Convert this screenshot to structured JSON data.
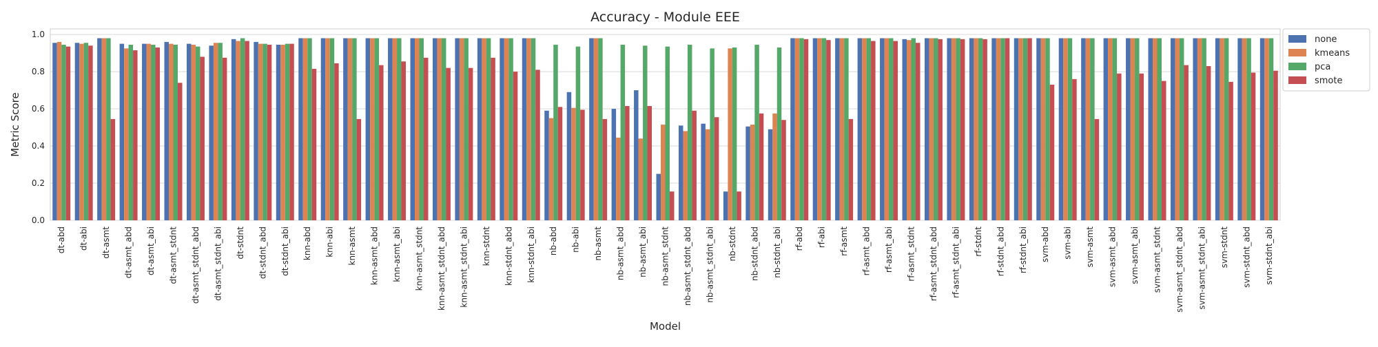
{
  "chart_data": {
    "type": "bar",
    "title": "Accuracy - Module EEE",
    "xlabel": "Model",
    "ylabel": "Metric Score",
    "ylim": [
      0,
      1.03
    ],
    "yticks": [
      "0.0",
      "0.2",
      "0.4",
      "0.6",
      "0.8",
      "1.0"
    ],
    "grid": true,
    "legend_position": "outside-top-right",
    "categories": [
      "dt-abd",
      "dt-abi",
      "dt-asmt",
      "dt-asmt_abd",
      "dt-asmt_abi",
      "dt-asmt_stdnt",
      "dt-asmt_stdnt_abd",
      "dt-asmt_stdnt_abi",
      "dt-stdnt",
      "dt-stdnt_abd",
      "dt-stdnt_abi",
      "knn-abd",
      "knn-abi",
      "knn-asmt",
      "knn-asmt_abd",
      "knn-asmt_abi",
      "knn-asmt_stdnt",
      "knn-asmt_stdnt_abd",
      "knn-asmt_stdnt_abi",
      "knn-stdnt",
      "knn-stdnt_abd",
      "knn-stdnt_abi",
      "nb-abd",
      "nb-abi",
      "nb-asmt",
      "nb-asmt_abd",
      "nb-asmt_abi",
      "nb-asmt_stdnt",
      "nb-asmt_stdnt_abd",
      "nb-asmt_stdnt_abi",
      "nb-stdnt",
      "nb-stdnt_abd",
      "nb-stdnt_abi",
      "rf-abd",
      "rf-abi",
      "rf-asmt",
      "rf-asmt_abd",
      "rf-asmt_abi",
      "rf-asmt_stdnt",
      "rf-asmt_stdnt_abd",
      "rf-asmt_stdnt_abi",
      "rf-stdnt",
      "rf-stdnt_abd",
      "rf-stdnt_abi",
      "svm-abd",
      "svm-abi",
      "svm-asmt",
      "svm-asmt_abd",
      "svm-asmt_abi",
      "svm-asmt_stdnt",
      "svm-asmt_stdnt_abd",
      "svm-asmt_stdnt_abi",
      "svm-stdnt",
      "svm-stdnt_abd",
      "svm-stdnt_abi"
    ],
    "series": [
      {
        "name": "none",
        "color": "#4c72b0",
        "values": [
          0.955,
          0.955,
          0.98,
          0.95,
          0.95,
          0.96,
          0.95,
          0.94,
          0.975,
          0.96,
          0.945,
          0.98,
          0.98,
          0.98,
          0.98,
          0.98,
          0.98,
          0.98,
          0.98,
          0.98,
          0.98,
          0.98,
          0.59,
          0.69,
          0.98,
          0.6,
          0.7,
          0.25,
          0.51,
          0.52,
          0.155,
          0.505,
          0.49,
          0.98,
          0.98,
          0.98,
          0.98,
          0.98,
          0.975,
          0.98,
          0.98,
          0.98,
          0.98,
          0.98,
          0.98,
          0.98,
          0.98,
          0.98,
          0.98,
          0.98,
          0.98,
          0.98,
          0.98,
          0.98,
          0.98
        ]
      },
      {
        "name": "kmeans",
        "color": "#dd8452",
        "values": [
          0.96,
          0.95,
          0.98,
          0.925,
          0.95,
          0.95,
          0.945,
          0.955,
          0.965,
          0.95,
          0.945,
          0.98,
          0.98,
          0.98,
          0.98,
          0.98,
          0.98,
          0.98,
          0.98,
          0.98,
          0.98,
          0.98,
          0.55,
          0.605,
          0.98,
          0.445,
          0.44,
          0.515,
          0.48,
          0.49,
          0.925,
          0.515,
          0.575,
          0.98,
          0.98,
          0.98,
          0.98,
          0.98,
          0.97,
          0.98,
          0.98,
          0.98,
          0.98,
          0.98,
          0.98,
          0.98,
          0.98,
          0.98,
          0.98,
          0.98,
          0.98,
          0.98,
          0.98,
          0.98,
          0.98
        ]
      },
      {
        "name": "pca",
        "color": "#55a868",
        "values": [
          0.945,
          0.955,
          0.98,
          0.945,
          0.945,
          0.945,
          0.935,
          0.955,
          0.98,
          0.95,
          0.95,
          0.98,
          0.98,
          0.98,
          0.98,
          0.98,
          0.98,
          0.98,
          0.98,
          0.98,
          0.98,
          0.98,
          0.945,
          0.935,
          0.98,
          0.945,
          0.94,
          0.935,
          0.945,
          0.925,
          0.93,
          0.945,
          0.93,
          0.98,
          0.98,
          0.98,
          0.98,
          0.98,
          0.98,
          0.98,
          0.98,
          0.98,
          0.98,
          0.98,
          0.98,
          0.98,
          0.98,
          0.98,
          0.98,
          0.98,
          0.98,
          0.98,
          0.98,
          0.98,
          0.98
        ]
      },
      {
        "name": "smote",
        "color": "#c44e52",
        "values": [
          0.935,
          0.94,
          0.545,
          0.915,
          0.93,
          0.74,
          0.88,
          0.875,
          0.965,
          0.945,
          0.95,
          0.815,
          0.845,
          0.545,
          0.835,
          0.855,
          0.875,
          0.82,
          0.82,
          0.875,
          0.8,
          0.81,
          0.61,
          0.595,
          0.545,
          0.615,
          0.615,
          0.155,
          0.59,
          0.555,
          0.155,
          0.575,
          0.54,
          0.975,
          0.97,
          0.545,
          0.965,
          0.965,
          0.955,
          0.975,
          0.975,
          0.975,
          0.98,
          0.98,
          0.73,
          0.76,
          0.545,
          0.79,
          0.79,
          0.75,
          0.835,
          0.83,
          0.745,
          0.795,
          0.805
        ]
      }
    ]
  }
}
